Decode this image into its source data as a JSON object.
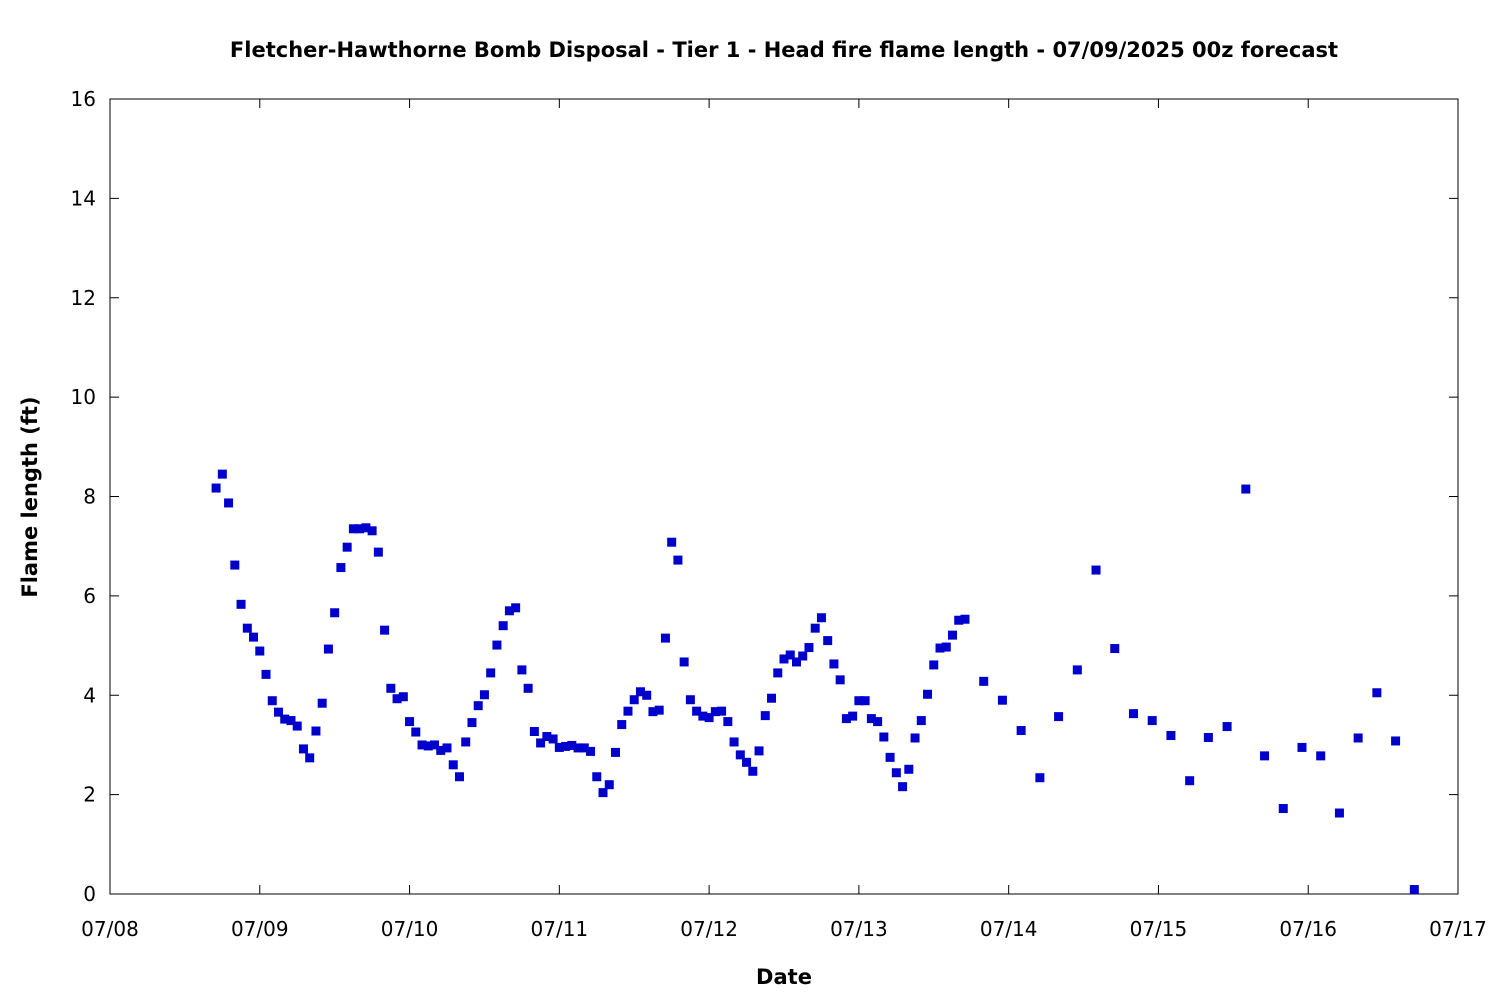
{
  "chart_data": {
    "type": "scatter",
    "title": "Fletcher-Hawthorne Bomb Disposal - Tier 1 - Head fire flame length - 07/09/2025 00z forecast",
    "xlabel": "Date",
    "ylabel": "Flame length (ft)",
    "x_ticks": [
      "07/08",
      "07/09",
      "07/10",
      "07/11",
      "07/12",
      "07/13",
      "07/14",
      "07/15",
      "07/16",
      "07/17"
    ],
    "y_ticks": [
      "0",
      "2",
      "4",
      "6",
      "8",
      "10",
      "12",
      "14",
      "16"
    ],
    "xlim": [
      "2025-07-08T00:00",
      "2025-07-17T00:00"
    ],
    "ylim": [
      0,
      16
    ],
    "grid": false,
    "marker_color": "#0000cc",
    "series": [
      {
        "points": [
          [
            "2025-07-08T17:00",
            8.17
          ],
          [
            "2025-07-08T18:00",
            8.45
          ],
          [
            "2025-07-08T19:00",
            7.87
          ],
          [
            "2025-07-08T20:00",
            6.62
          ],
          [
            "2025-07-08T21:00",
            5.83
          ],
          [
            "2025-07-08T22:00",
            5.35
          ],
          [
            "2025-07-08T23:00",
            5.17
          ],
          [
            "2025-07-09T00:00",
            4.89
          ],
          [
            "2025-07-09T01:00",
            4.42
          ],
          [
            "2025-07-09T02:00",
            3.89
          ],
          [
            "2025-07-09T03:00",
            3.66
          ],
          [
            "2025-07-09T04:00",
            3.52
          ],
          [
            "2025-07-09T05:00",
            3.49
          ],
          [
            "2025-07-09T06:00",
            3.38
          ],
          [
            "2025-07-09T07:00",
            2.92
          ],
          [
            "2025-07-09T08:00",
            2.74
          ],
          [
            "2025-07-09T09:00",
            3.28
          ],
          [
            "2025-07-09T10:00",
            3.84
          ],
          [
            "2025-07-09T11:00",
            4.93
          ],
          [
            "2025-07-09T12:00",
            5.66
          ],
          [
            "2025-07-09T13:00",
            6.57
          ],
          [
            "2025-07-09T14:00",
            6.98
          ],
          [
            "2025-07-09T15:00",
            7.35
          ],
          [
            "2025-07-09T16:00",
            7.35
          ],
          [
            "2025-07-09T17:00",
            7.37
          ],
          [
            "2025-07-09T18:00",
            7.31
          ],
          [
            "2025-07-09T19:00",
            6.88
          ],
          [
            "2025-07-09T20:00",
            5.31
          ],
          [
            "2025-07-09T21:00",
            4.14
          ],
          [
            "2025-07-09T22:00",
            3.93
          ],
          [
            "2025-07-09T23:00",
            3.97
          ],
          [
            "2025-07-10T00:00",
            3.47
          ],
          [
            "2025-07-10T01:00",
            3.26
          ],
          [
            "2025-07-10T02:00",
            3.0
          ],
          [
            "2025-07-10T03:00",
            2.98
          ],
          [
            "2025-07-10T04:00",
            3.0
          ],
          [
            "2025-07-10T05:00",
            2.89
          ],
          [
            "2025-07-10T06:00",
            2.94
          ],
          [
            "2025-07-10T07:00",
            2.6
          ],
          [
            "2025-07-10T08:00",
            2.36
          ],
          [
            "2025-07-10T09:00",
            3.06
          ],
          [
            "2025-07-10T10:00",
            3.45
          ],
          [
            "2025-07-10T11:00",
            3.79
          ],
          [
            "2025-07-10T12:00",
            4.01
          ],
          [
            "2025-07-10T13:00",
            4.45
          ],
          [
            "2025-07-10T14:00",
            5.01
          ],
          [
            "2025-07-10T15:00",
            5.4
          ],
          [
            "2025-07-10T16:00",
            5.7
          ],
          [
            "2025-07-10T17:00",
            5.76
          ],
          [
            "2025-07-10T18:00",
            4.51
          ],
          [
            "2025-07-10T19:00",
            4.14
          ],
          [
            "2025-07-10T20:00",
            3.27
          ],
          [
            "2025-07-10T21:00",
            3.04
          ],
          [
            "2025-07-10T22:00",
            3.17
          ],
          [
            "2025-07-10T23:00",
            3.12
          ],
          [
            "2025-07-11T00:00",
            2.95
          ],
          [
            "2025-07-11T01:00",
            2.97
          ],
          [
            "2025-07-11T02:00",
            2.99
          ],
          [
            "2025-07-11T03:00",
            2.94
          ],
          [
            "2025-07-11T04:00",
            2.94
          ],
          [
            "2025-07-11T05:00",
            2.87
          ],
          [
            "2025-07-11T06:00",
            2.36
          ],
          [
            "2025-07-11T07:00",
            2.04
          ],
          [
            "2025-07-11T08:00",
            2.2
          ],
          [
            "2025-07-11T09:00",
            2.85
          ],
          [
            "2025-07-11T10:00",
            3.41
          ],
          [
            "2025-07-11T11:00",
            3.68
          ],
          [
            "2025-07-11T12:00",
            3.91
          ],
          [
            "2025-07-11T13:00",
            4.07
          ],
          [
            "2025-07-11T14:00",
            4.0
          ],
          [
            "2025-07-11T15:00",
            3.67
          ],
          [
            "2025-07-11T16:00",
            3.7
          ],
          [
            "2025-07-11T17:00",
            5.15
          ],
          [
            "2025-07-11T18:00",
            7.08
          ],
          [
            "2025-07-11T19:00",
            6.72
          ],
          [
            "2025-07-11T20:00",
            4.67
          ],
          [
            "2025-07-11T21:00",
            3.91
          ],
          [
            "2025-07-11T22:00",
            3.68
          ],
          [
            "2025-07-11T23:00",
            3.58
          ],
          [
            "2025-07-12T00:00",
            3.55
          ],
          [
            "2025-07-12T01:00",
            3.67
          ],
          [
            "2025-07-12T02:00",
            3.68
          ],
          [
            "2025-07-12T03:00",
            3.47
          ],
          [
            "2025-07-12T04:00",
            3.06
          ],
          [
            "2025-07-12T05:00",
            2.8
          ],
          [
            "2025-07-12T06:00",
            2.65
          ],
          [
            "2025-07-12T07:00",
            2.47
          ],
          [
            "2025-07-12T08:00",
            2.88
          ],
          [
            "2025-07-12T09:00",
            3.59
          ],
          [
            "2025-07-12T10:00",
            3.94
          ],
          [
            "2025-07-12T11:00",
            4.45
          ],
          [
            "2025-07-12T12:00",
            4.73
          ],
          [
            "2025-07-12T13:00",
            4.81
          ],
          [
            "2025-07-12T14:00",
            4.67
          ],
          [
            "2025-07-12T15:00",
            4.79
          ],
          [
            "2025-07-12T16:00",
            4.96
          ],
          [
            "2025-07-12T17:00",
            5.35
          ],
          [
            "2025-07-12T18:00",
            5.56
          ],
          [
            "2025-07-12T19:00",
            5.1
          ],
          [
            "2025-07-12T20:00",
            4.63
          ],
          [
            "2025-07-12T21:00",
            4.31
          ],
          [
            "2025-07-12T22:00",
            3.53
          ],
          [
            "2025-07-12T23:00",
            3.58
          ],
          [
            "2025-07-13T00:00",
            3.89
          ],
          [
            "2025-07-13T01:00",
            3.89
          ],
          [
            "2025-07-13T02:00",
            3.53
          ],
          [
            "2025-07-13T03:00",
            3.47
          ],
          [
            "2025-07-13T04:00",
            3.16
          ],
          [
            "2025-07-13T05:00",
            2.75
          ],
          [
            "2025-07-13T06:00",
            2.44
          ],
          [
            "2025-07-13T07:00",
            2.16
          ],
          [
            "2025-07-13T08:00",
            2.51
          ],
          [
            "2025-07-13T09:00",
            3.14
          ],
          [
            "2025-07-13T10:00",
            3.49
          ],
          [
            "2025-07-13T11:00",
            4.02
          ],
          [
            "2025-07-13T12:00",
            4.61
          ],
          [
            "2025-07-13T13:00",
            4.95
          ],
          [
            "2025-07-13T14:00",
            4.97
          ],
          [
            "2025-07-13T15:00",
            5.21
          ],
          [
            "2025-07-13T16:00",
            5.51
          ],
          [
            "2025-07-13T17:00",
            5.53
          ],
          [
            "2025-07-13T20:00",
            4.28
          ],
          [
            "2025-07-13T23:00",
            3.9
          ],
          [
            "2025-07-14T02:00",
            3.29
          ],
          [
            "2025-07-14T05:00",
            2.34
          ],
          [
            "2025-07-14T08:00",
            3.57
          ],
          [
            "2025-07-14T11:00",
            4.51
          ],
          [
            "2025-07-14T14:00",
            6.52
          ],
          [
            "2025-07-14T17:00",
            4.94
          ],
          [
            "2025-07-14T20:00",
            3.63
          ],
          [
            "2025-07-14T23:00",
            3.49
          ],
          [
            "2025-07-15T02:00",
            3.19
          ],
          [
            "2025-07-15T05:00",
            2.28
          ],
          [
            "2025-07-15T08:00",
            3.15
          ],
          [
            "2025-07-15T11:00",
            3.37
          ],
          [
            "2025-07-15T14:00",
            8.15
          ],
          [
            "2025-07-15T17:00",
            2.78
          ],
          [
            "2025-07-15T20:00",
            1.72
          ],
          [
            "2025-07-15T23:00",
            2.95
          ],
          [
            "2025-07-16T02:00",
            2.78
          ],
          [
            "2025-07-16T05:00",
            1.63
          ],
          [
            "2025-07-16T08:00",
            3.14
          ],
          [
            "2025-07-16T11:00",
            4.05
          ],
          [
            "2025-07-16T14:00",
            3.08
          ],
          [
            "2025-07-16T17:00",
            0.09
          ]
        ]
      }
    ]
  }
}
